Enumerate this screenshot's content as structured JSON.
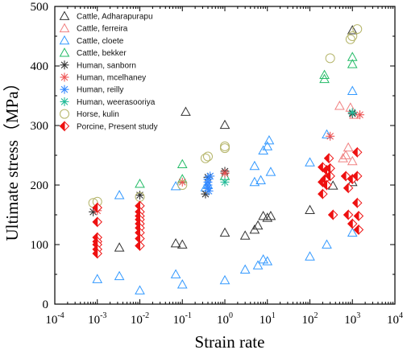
{
  "chart_data": {
    "type": "scatter",
    "xscale": "log",
    "xlim": [
      0.0001,
      10000
    ],
    "ylim": [
      0,
      500
    ],
    "xlabel": "Strain  rate",
    "ylabel": "Ultimate stress（MPa）",
    "x_ticks": [
      "10",
      "10",
      "10",
      "10",
      "10",
      "10",
      "10",
      "10",
      "10"
    ],
    "x_tick_exponents": [
      "-4",
      "-3",
      "-2",
      "-1",
      "0",
      "1",
      "2",
      "3",
      "4"
    ],
    "y_ticks": [
      "0",
      "100",
      "200",
      "300",
      "400",
      "500"
    ],
    "legend_position": "top-left",
    "series": [
      {
        "name": "Cattle, Adharapurapu",
        "marker": "triangle",
        "color": "#333333",
        "points": [
          [
            0.0033,
            95
          ],
          [
            0.07,
            102
          ],
          [
            0.1,
            100
          ],
          [
            0.12,
            323
          ],
          [
            1,
            301
          ],
          [
            1,
            120
          ],
          [
            3,
            115
          ],
          [
            5,
            125
          ],
          [
            6,
            132
          ],
          [
            8,
            148
          ],
          [
            10,
            145
          ],
          [
            12,
            148
          ],
          [
            100,
            158
          ],
          [
            350,
            199
          ],
          [
            1000,
            205
          ],
          [
            1000,
            460
          ]
        ]
      },
      {
        "name": "Cattle, ferreira",
        "marker": "triangle",
        "color": "#f08080",
        "points": [
          [
            500,
            333
          ],
          [
            700,
            250
          ],
          [
            800,
            263
          ],
          [
            900,
            330
          ],
          [
            1000,
            240
          ],
          [
            1100,
            318
          ],
          [
            600,
            245
          ]
        ]
      },
      {
        "name": "Cattle, cloete",
        "marker": "triangle",
        "color": "#3399ff",
        "points": [
          [
            0.001,
            42
          ],
          [
            0.0033,
            183
          ],
          [
            0.0033,
            47
          ],
          [
            0.01,
            23
          ],
          [
            0.07,
            198
          ],
          [
            0.07,
            50
          ],
          [
            0.1,
            33
          ],
          [
            0.35,
            196
          ],
          [
            0.4,
            200
          ],
          [
            1,
            40
          ],
          [
            3,
            58
          ],
          [
            5,
            205
          ],
          [
            5,
            232
          ],
          [
            6,
            65
          ],
          [
            7,
            208
          ],
          [
            8,
            258
          ],
          [
            8,
            75
          ],
          [
            10,
            265
          ],
          [
            10,
            72
          ],
          [
            11,
            275
          ],
          [
            12,
            222
          ],
          [
            100,
            238
          ],
          [
            100,
            80
          ],
          [
            250,
            285
          ],
          [
            250,
            100
          ],
          [
            1000,
            358
          ],
          [
            1000,
            120
          ]
        ]
      },
      {
        "name": "Cattle, bekker",
        "marker": "triangle",
        "color": "#22bb66",
        "points": [
          [
            0.01,
            202
          ],
          [
            0.1,
            235
          ],
          [
            0.1,
            210
          ],
          [
            1,
            215
          ],
          [
            220,
            385
          ],
          [
            220,
            378
          ],
          [
            1000,
            415
          ],
          [
            1000,
            403
          ]
        ]
      },
      {
        "name": "Human, sanborn",
        "marker": "asterisk",
        "color": "#333333",
        "points": [
          [
            0.0008,
            155
          ],
          [
            0.01,
            183
          ],
          [
            0.35,
            185
          ],
          [
            0.4,
            213
          ],
          [
            1,
            223
          ],
          [
            1,
            220
          ],
          [
            1000,
            320
          ]
        ]
      },
      {
        "name": "Human, mcelhaney",
        "marker": "asterisk",
        "color": "#ee5555",
        "points": [
          [
            0.001,
            157
          ],
          [
            0.1,
            205
          ],
          [
            1,
            220
          ],
          [
            300,
            282
          ],
          [
            1500,
            318
          ]
        ]
      },
      {
        "name": "Human, reilly",
        "marker": "asterisk",
        "color": "#3388ff",
        "points": [
          [
            0.4,
            210
          ],
          [
            0.4,
            205
          ],
          [
            0.4,
            200
          ],
          [
            0.4,
            195
          ],
          [
            0.45,
            215
          ],
          [
            0.42,
            190
          ]
        ]
      },
      {
        "name": "Human, weerasooriya",
        "marker": "asterisk",
        "color": "#22bb99",
        "points": [
          [
            1,
            205
          ],
          [
            1000,
            322
          ]
        ]
      },
      {
        "name": "Horse, kulin",
        "marker": "circle",
        "color": "#b5b56a",
        "points": [
          [
            0.0008,
            170
          ],
          [
            0.001,
            172
          ],
          [
            0.01,
            180
          ],
          [
            0.1,
            200
          ],
          [
            0.35,
            245
          ],
          [
            0.4,
            248
          ],
          [
            1,
            265
          ],
          [
            1,
            262
          ],
          [
            300,
            413
          ],
          [
            900,
            445
          ],
          [
            1000,
            450
          ],
          [
            1300,
            462
          ]
        ]
      },
      {
        "name": "Porcine, Present study",
        "marker": "half-diamond",
        "color": "#ee1111",
        "points": [
          [
            0.001,
            162
          ],
          [
            0.001,
            138
          ],
          [
            0.001,
            112
          ],
          [
            0.001,
            105
          ],
          [
            0.001,
            100
          ],
          [
            0.001,
            92
          ],
          [
            0.001,
            85
          ],
          [
            0.01,
            165
          ],
          [
            0.01,
            155
          ],
          [
            0.01,
            148
          ],
          [
            0.01,
            142
          ],
          [
            0.01,
            135
          ],
          [
            0.01,
            128
          ],
          [
            0.01,
            120
          ],
          [
            0.01,
            110
          ],
          [
            0.01,
            98
          ],
          [
            200,
            230
          ],
          [
            200,
            205
          ],
          [
            200,
            185
          ],
          [
            230,
            210
          ],
          [
            250,
            225
          ],
          [
            250,
            200
          ],
          [
            280,
            245
          ],
          [
            300,
            228
          ],
          [
            300,
            215
          ],
          [
            350,
            150
          ],
          [
            700,
            215
          ],
          [
            800,
            195
          ],
          [
            800,
            150
          ],
          [
            1000,
            210
          ],
          [
            1000,
            135
          ],
          [
            1300,
            255
          ],
          [
            1300,
            215
          ],
          [
            1300,
            170
          ],
          [
            1400,
            148
          ],
          [
            1400,
            125
          ]
        ]
      }
    ]
  }
}
